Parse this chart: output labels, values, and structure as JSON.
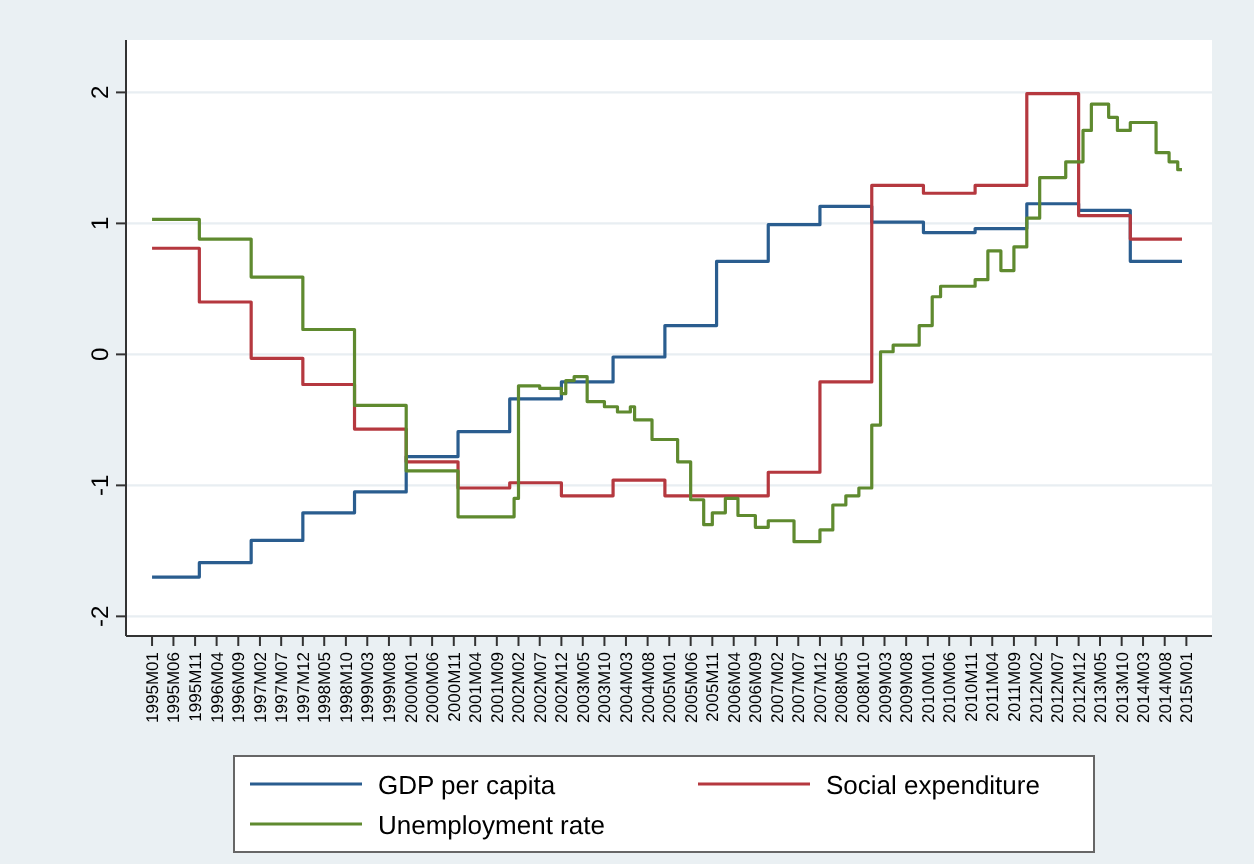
{
  "chart_data": {
    "type": "step",
    "legend": "bottom",
    "grid": "y",
    "xlim": [
      "1994-07",
      "2015-07"
    ],
    "ylim": [
      -2.15,
      2.4
    ],
    "yticks": [
      -2,
      -1,
      0,
      1,
      2
    ],
    "xticks": [
      {
        "value": "1995-01",
        "label": "1995M01"
      },
      {
        "value": "1995-06",
        "label": "1995M06"
      },
      {
        "value": "1995-11",
        "label": "1995M11"
      },
      {
        "value": "1996-04",
        "label": "1996M04"
      },
      {
        "value": "1996-09",
        "label": "1996M09"
      },
      {
        "value": "1997-02",
        "label": "1997M02"
      },
      {
        "value": "1997-07",
        "label": "1997M07"
      },
      {
        "value": "1997-12",
        "label": "1997M12"
      },
      {
        "value": "1998-05",
        "label": "1998M05"
      },
      {
        "value": "1998-10",
        "label": "1998M10"
      },
      {
        "value": "1999-03",
        "label": "1999M03"
      },
      {
        "value": "1999-08",
        "label": "1999M08"
      },
      {
        "value": "2000-01",
        "label": "2000M01"
      },
      {
        "value": "2000-06",
        "label": "2000M06"
      },
      {
        "value": "2000-11",
        "label": "2000M11"
      },
      {
        "value": "2001-04",
        "label": "2001M04"
      },
      {
        "value": "2001-09",
        "label": "2001M09"
      },
      {
        "value": "2002-02",
        "label": "2002M02"
      },
      {
        "value": "2002-07",
        "label": "2002M07"
      },
      {
        "value": "2002-12",
        "label": "2002M12"
      },
      {
        "value": "2003-05",
        "label": "2003M05"
      },
      {
        "value": "2003-10",
        "label": "2003M10"
      },
      {
        "value": "2004-03",
        "label": "2004M03"
      },
      {
        "value": "2004-08",
        "label": "2004M08"
      },
      {
        "value": "2005-01",
        "label": "2005M01"
      },
      {
        "value": "2005-06",
        "label": "2005M06"
      },
      {
        "value": "2005-11",
        "label": "2005M11"
      },
      {
        "value": "2006-04",
        "label": "2006M04"
      },
      {
        "value": "2006-09",
        "label": "2006M09"
      },
      {
        "value": "2007-02",
        "label": "2007M02"
      },
      {
        "value": "2007-07",
        "label": "2007M07"
      },
      {
        "value": "2007-12",
        "label": "2007M12"
      },
      {
        "value": "2008-05",
        "label": "2008M05"
      },
      {
        "value": "2008-10",
        "label": "2008M10"
      },
      {
        "value": "2009-03",
        "label": "2009M03"
      },
      {
        "value": "2009-08",
        "label": "2009M08"
      },
      {
        "value": "2010-01",
        "label": "2010M01"
      },
      {
        "value": "2010-06",
        "label": "2010M06"
      },
      {
        "value": "2010-11",
        "label": "2010M11"
      },
      {
        "value": "2011-04",
        "label": "2011M04"
      },
      {
        "value": "2011-09",
        "label": "2011M09"
      },
      {
        "value": "2012-02",
        "label": "2012M02"
      },
      {
        "value": "2012-07",
        "label": "2012M07"
      },
      {
        "value": "2012-12",
        "label": "2012M12"
      },
      {
        "value": "2013-05",
        "label": "2013M05"
      },
      {
        "value": "2013-10",
        "label": "2013M10"
      },
      {
        "value": "2014-03",
        "label": "2014M03"
      },
      {
        "value": "2014-08",
        "label": "2014M08"
      },
      {
        "value": "2015-01",
        "label": "2015M01"
      }
    ],
    "series": [
      {
        "name": "GDP per capita",
        "color": "#2a5d8f",
        "x": [
          "1995-01",
          "1995-12",
          "1996-12",
          "1997-12",
          "1998-12",
          "1999-12",
          "2000-12",
          "2001-12",
          "2002-12",
          "2003-12",
          "2004-12",
          "2005-12",
          "2006-12",
          "2007-12",
          "2008-12",
          "2009-12",
          "2010-12",
          "2011-12",
          "2012-12",
          "2013-12",
          "2014-12"
        ],
        "values": [
          -1.7,
          -1.59,
          -1.42,
          -1.21,
          -1.05,
          -0.78,
          -0.59,
          -0.34,
          -0.21,
          -0.02,
          0.22,
          0.71,
          0.99,
          1.13,
          1.01,
          0.93,
          0.96,
          1.15,
          1.1,
          0.71,
          0.71
        ]
      },
      {
        "name": "Social expenditure",
        "color": "#b5383f",
        "x": [
          "1995-01",
          "1995-12",
          "1996-12",
          "1997-12",
          "1998-12",
          "1999-12",
          "2000-12",
          "2001-12",
          "2002-12",
          "2003-12",
          "2004-12",
          "2005-12",
          "2006-12",
          "2007-12",
          "2008-12",
          "2009-12",
          "2010-12",
          "2011-12",
          "2012-12",
          "2013-12",
          "2014-12"
        ],
        "values": [
          0.81,
          0.4,
          -0.03,
          -0.23,
          -0.57,
          -0.82,
          -1.02,
          -0.98,
          -1.08,
          -0.96,
          -1.08,
          -1.08,
          -0.9,
          -0.21,
          1.29,
          1.23,
          1.29,
          1.99,
          1.06,
          0.88,
          0.88
        ]
      },
      {
        "name": "Unemployment rate",
        "color": "#5f8a2f",
        "x": [
          "1995-01",
          "1995-12",
          "1996-12",
          "1997-12",
          "1998-12",
          "1999-12",
          "2000-12",
          "2002-01",
          "2002-02",
          "2002-07",
          "2002-12",
          "2003-01",
          "2003-03",
          "2003-06",
          "2003-10",
          "2004-01",
          "2004-04",
          "2004-05",
          "2004-09",
          "2005-03",
          "2005-06",
          "2005-09",
          "2005-11",
          "2006-02",
          "2006-05",
          "2006-09",
          "2006-12",
          "2007-06",
          "2007-12",
          "2008-03",
          "2008-06",
          "2008-09",
          "2008-12",
          "2009-02",
          "2009-05",
          "2009-11",
          "2010-02",
          "2010-04",
          "2010-12",
          "2011-03",
          "2011-06",
          "2011-09",
          "2011-12",
          "2012-03",
          "2012-09",
          "2013-01",
          "2013-03",
          "2013-07",
          "2013-09",
          "2013-12",
          "2014-06",
          "2014-09",
          "2014-11",
          "2014-12"
        ],
        "values": [
          1.03,
          0.88,
          0.59,
          0.19,
          -0.39,
          -0.89,
          -1.24,
          -1.1,
          -0.24,
          -0.26,
          -0.3,
          -0.2,
          -0.17,
          -0.36,
          -0.4,
          -0.44,
          -0.4,
          -0.5,
          -0.65,
          -0.82,
          -1.11,
          -1.3,
          -1.21,
          -1.1,
          -1.23,
          -1.32,
          -1.27,
          -1.43,
          -1.34,
          -1.15,
          -1.08,
          -1.02,
          -0.54,
          0.02,
          0.07,
          0.22,
          0.44,
          0.52,
          0.57,
          0.79,
          0.64,
          0.82,
          1.04,
          1.35,
          1.47,
          1.71,
          1.91,
          1.81,
          1.71,
          1.77,
          1.54,
          1.47,
          1.41,
          1.41
        ]
      }
    ]
  }
}
